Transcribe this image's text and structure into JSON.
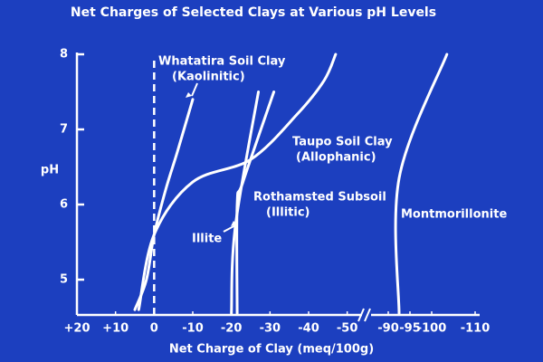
{
  "chart_data": {
    "type": "line",
    "title": "Net Charges of Selected Clays at Various pH Levels",
    "xlabel": "Net Charge of Clay (meq/100g)",
    "ylabel": "pH",
    "xlim": [
      20,
      -110
    ],
    "xbreak": [
      -55,
      -85
    ],
    "ylim": [
      4.5,
      8
    ],
    "xticks": [
      {
        "value": 20,
        "label": "+20"
      },
      {
        "value": 10,
        "label": "+10"
      },
      0,
      -10,
      -20,
      -30,
      -40,
      -50,
      -90,
      -95,
      -100,
      -110
    ],
    "yticks": [
      5,
      6,
      7,
      8
    ],
    "reference_x": 0,
    "background": "#1c3fbf",
    "color": "#ffffff",
    "series": [
      {
        "label": [
          "Whatatira Soil Clay",
          "(Kaolinitic)"
        ],
        "color": "#ffffff",
        "x": [
          5,
          2,
          0,
          -3,
          -6,
          -10
        ],
        "values": [
          4.6,
          5.0,
          5.6,
          6.2,
          6.7,
          7.4
        ]
      },
      {
        "label": [
          "Taupo Soil Clay",
          "(Allophanic)"
        ],
        "color": "#ffffff",
        "x": [
          4,
          0,
          -10,
          -25,
          -37,
          -44,
          -47
        ],
        "values": [
          4.6,
          5.6,
          6.3,
          6.6,
          7.2,
          7.65,
          8.0
        ]
      },
      {
        "label": [
          "Illite"
        ],
        "color": "#ffffff",
        "x": [
          -20,
          -21,
          -27
        ],
        "values": [
          4.55,
          5.7,
          7.5
        ]
      },
      {
        "label": [
          "Rothamsted Subsoil",
          "(Illitic)"
        ],
        "color": "#ffffff",
        "x": [
          -21.5,
          -21.5,
          -23,
          -31
        ],
        "values": [
          4.55,
          6.0,
          6.3,
          7.5
        ]
      },
      {
        "label": [
          "Montmorillonite"
        ],
        "color": "#ffffff",
        "x": [
          -92.5,
          -92.5,
          -103.5
        ],
        "values": [
          4.55,
          6.35,
          8.0
        ]
      }
    ]
  }
}
